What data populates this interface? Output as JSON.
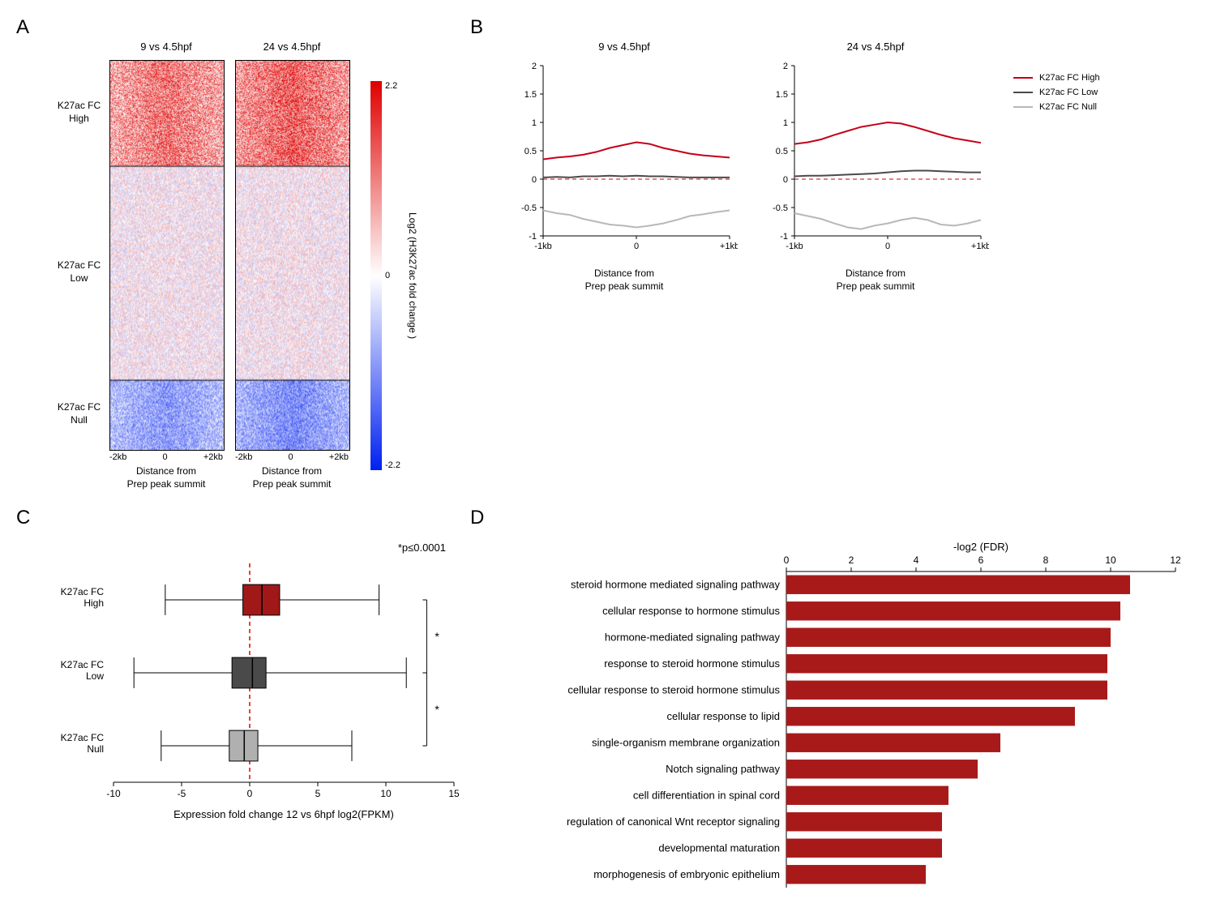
{
  "panelA": {
    "label": "A",
    "row_labels": [
      "K27ac FC\nHigh",
      "K27ac FC\nLow",
      "K27ac FC\nNull"
    ],
    "row_fracs": [
      0.27,
      0.55,
      0.18
    ],
    "colorbar": {
      "label": "Log2 (H3K27ac fold change )",
      "vmin": -2.2,
      "vmax": 2.2,
      "neg_color": "#0020f0",
      "zero_color": "#ffffff",
      "pos_color": "#e00000"
    },
    "heatmaps": [
      {
        "title": "9 vs 4.5hpf",
        "xlabel": "Distance from\nPrep peak summit",
        "xticks": [
          "-2kb",
          "0",
          "+2kb"
        ]
      },
      {
        "title": "24 vs 4.5hpf",
        "xlabel": "Distance from\nPrep peak summit",
        "xticks": [
          "-2kb",
          "0",
          "+2kb"
        ]
      }
    ]
  },
  "panelB": {
    "label": "B",
    "ylim": [
      -1,
      2
    ],
    "yticks": [
      -1,
      -0.5,
      0,
      0.5,
      1,
      1.5,
      2
    ],
    "xticks": [
      "-1kb",
      "0",
      "+1kb"
    ],
    "legend": [
      {
        "label": "K27ac FC  High",
        "color": "#c50018"
      },
      {
        "label": "K27ac FC  Low",
        "color": "#4a4a4a"
      },
      {
        "label": "K27ac FC  Null",
        "color": "#b8b8b8"
      }
    ],
    "plots": [
      {
        "title": "9 vs 4.5hpf",
        "xlabel": "Distance from\nPrep peak summit",
        "series": [
          {
            "color": "#c50018",
            "pts": [
              0.35,
              0.38,
              0.4,
              0.43,
              0.48,
              0.55,
              0.6,
              0.65,
              0.62,
              0.55,
              0.5,
              0.45,
              0.42,
              0.4,
              0.38
            ]
          },
          {
            "color": "#4a4a4a",
            "pts": [
              0.03,
              0.04,
              0.03,
              0.05,
              0.05,
              0.06,
              0.05,
              0.06,
              0.05,
              0.05,
              0.04,
              0.03,
              0.03,
              0.03,
              0.03
            ]
          },
          {
            "color": "#b8b8b8",
            "pts": [
              -0.55,
              -0.6,
              -0.63,
              -0.7,
              -0.75,
              -0.8,
              -0.82,
              -0.85,
              -0.82,
              -0.78,
              -0.72,
              -0.65,
              -0.62,
              -0.58,
              -0.55
            ]
          }
        ]
      },
      {
        "title": "24 vs 4.5hpf",
        "xlabel": "Distance from\nPrep peak summit",
        "series": [
          {
            "color": "#c50018",
            "pts": [
              0.62,
              0.65,
              0.7,
              0.78,
              0.85,
              0.92,
              0.96,
              1.0,
              0.98,
              0.92,
              0.85,
              0.78,
              0.72,
              0.68,
              0.64
            ]
          },
          {
            "color": "#4a4a4a",
            "pts": [
              0.05,
              0.06,
              0.06,
              0.07,
              0.08,
              0.09,
              0.1,
              0.12,
              0.14,
              0.15,
              0.15,
              0.14,
              0.13,
              0.12,
              0.12
            ]
          },
          {
            "color": "#b8b8b8",
            "pts": [
              -0.6,
              -0.65,
              -0.7,
              -0.78,
              -0.85,
              -0.88,
              -0.82,
              -0.78,
              -0.72,
              -0.68,
              -0.72,
              -0.8,
              -0.82,
              -0.78,
              -0.72
            ]
          }
        ]
      }
    ]
  },
  "panelC": {
    "label": "C",
    "xlabel": "Expression fold change 12 vs 6hpf log2(FPKM)",
    "sig_note": "*p≤0.0001",
    "xlim": [
      -10,
      15
    ],
    "xticks": [
      -10,
      -5,
      0,
      5,
      10,
      15
    ],
    "boxes": [
      {
        "label": "K27ac FC\nHigh",
        "color": "#a01818",
        "q1": -0.5,
        "med": 0.9,
        "q3": 2.2,
        "wlo": -6.2,
        "whi": 9.5
      },
      {
        "label": "K27ac FC\nLow",
        "color": "#4a4a4a",
        "q1": -1.3,
        "med": 0.2,
        "q3": 1.2,
        "wlo": -8.5,
        "whi": 11.5
      },
      {
        "label": "K27ac FC\nNull",
        "color": "#b0b0b0",
        "q1": -1.5,
        "med": -0.4,
        "q3": 0.6,
        "wlo": -6.5,
        "whi": 7.5
      }
    ]
  },
  "panelD": {
    "label": "D",
    "xlabel": "-log2 (FDR)",
    "xlim": [
      0,
      12
    ],
    "xticks": [
      0,
      2,
      4,
      6,
      8,
      10,
      12
    ],
    "bar_color": "#a81a1a",
    "terms": [
      {
        "label": "steroid hormone mediated signaling pathway",
        "value": 10.6
      },
      {
        "label": "cellular response to hormone stimulus",
        "value": 10.3
      },
      {
        "label": "hormone-mediated signaling pathway",
        "value": 10.0
      },
      {
        "label": "response to steroid hormone stimulus",
        "value": 9.9
      },
      {
        "label": "cellular response to steroid hormone stimulus",
        "value": 9.9
      },
      {
        "label": "cellular response to lipid",
        "value": 8.9
      },
      {
        "label": "single-organism membrane organization",
        "value": 6.6
      },
      {
        "label": "Notch signaling pathway",
        "value": 5.9
      },
      {
        "label": "cell differentiation in spinal cord",
        "value": 5.0
      },
      {
        "label": "regulation of canonical Wnt receptor signaling",
        "value": 4.8
      },
      {
        "label": "developmental maturation",
        "value": 4.8
      },
      {
        "label": "morphogenesis of embryonic epithelium",
        "value": 4.3
      }
    ]
  }
}
